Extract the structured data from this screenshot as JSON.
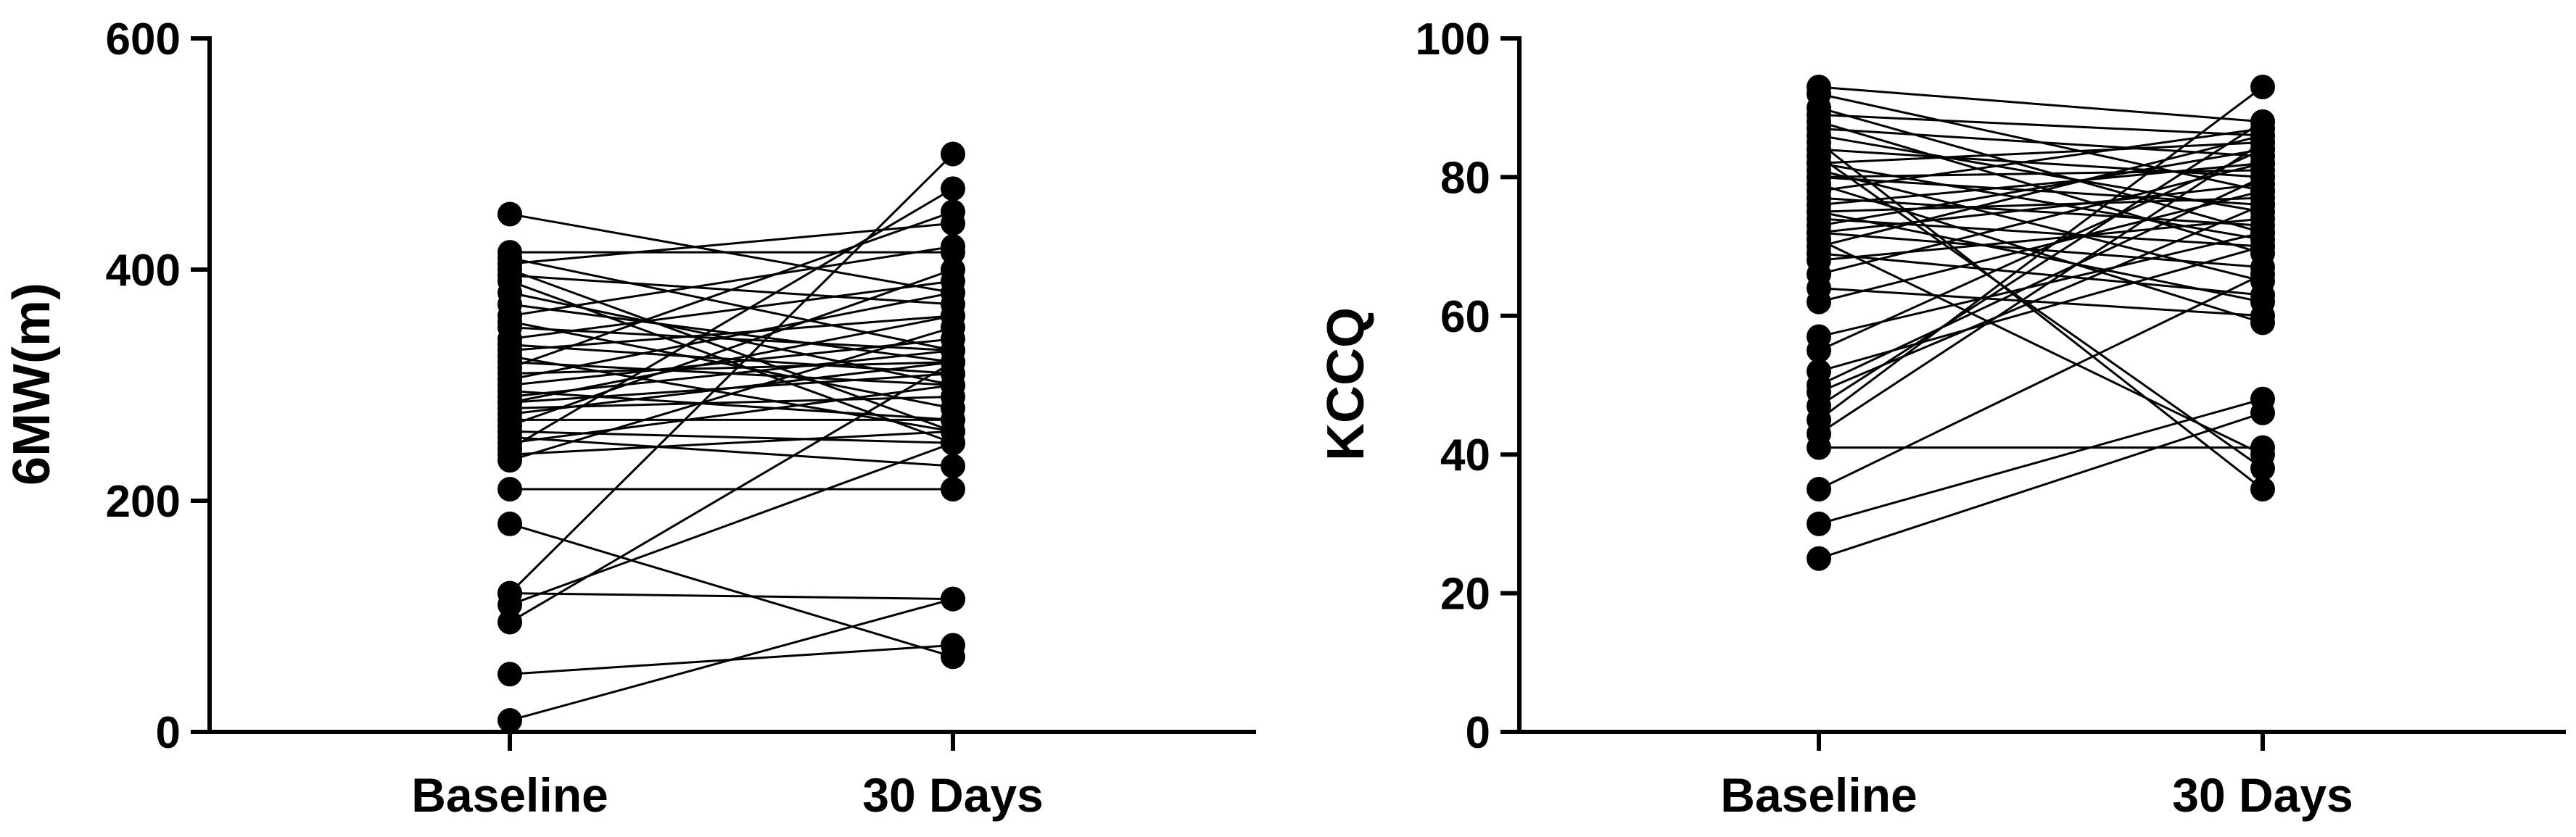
{
  "chart_data": [
    {
      "type": "line",
      "ylabel": "6MW(m)",
      "xlabel": "",
      "categories": [
        "Baseline",
        "30 Days"
      ],
      "ylim": [
        0,
        600
      ],
      "yticks": [
        0,
        200,
        400,
        600
      ],
      "grid": false,
      "legend": "none",
      "color": "#000000",
      "pairs": [
        [
          10,
          115
        ],
        [
          50,
          75
        ],
        [
          95,
          320
        ],
        [
          110,
          250
        ],
        [
          120,
          500
        ],
        [
          120,
          115
        ],
        [
          180,
          65
        ],
        [
          210,
          210
        ],
        [
          235,
          350
        ],
        [
          240,
          260
        ],
        [
          245,
          470
        ],
        [
          250,
          300
        ],
        [
          255,
          230
        ],
        [
          260,
          250
        ],
        [
          265,
          400
        ],
        [
          270,
          270
        ],
        [
          275,
          320
        ],
        [
          280,
          290
        ],
        [
          285,
          310
        ],
        [
          285,
          360
        ],
        [
          290,
          330
        ],
        [
          295,
          270
        ],
        [
          300,
          340
        ],
        [
          305,
          380
        ],
        [
          310,
          320
        ],
        [
          315,
          450
        ],
        [
          320,
          300
        ],
        [
          325,
          260
        ],
        [
          330,
          360
        ],
        [
          335,
          310
        ],
        [
          340,
          390
        ],
        [
          350,
          330
        ],
        [
          355,
          280
        ],
        [
          360,
          420
        ],
        [
          370,
          320
        ],
        [
          380,
          300
        ],
        [
          390,
          250
        ],
        [
          395,
          370
        ],
        [
          400,
          260
        ],
        [
          405,
          440
        ],
        [
          410,
          330
        ],
        [
          415,
          415
        ],
        [
          448,
          380
        ]
      ]
    },
    {
      "type": "line",
      "ylabel": "KCCQ",
      "xlabel": "",
      "categories": [
        "Baseline",
        "30 Days"
      ],
      "ylim": [
        0,
        100
      ],
      "yticks": [
        0,
        20,
        40,
        60,
        80,
        100
      ],
      "grid": false,
      "legend": "none",
      "color": "#000000",
      "pairs": [
        [
          25,
          46
        ],
        [
          30,
          48
        ],
        [
          35,
          66
        ],
        [
          41,
          41
        ],
        [
          43,
          85
        ],
        [
          45,
          93
        ],
        [
          47,
          88
        ],
        [
          49,
          76
        ],
        [
          50,
          80
        ],
        [
          52,
          70
        ],
        [
          55,
          84
        ],
        [
          57,
          72
        ],
        [
          62,
          78
        ],
        [
          64,
          60
        ],
        [
          66,
          82
        ],
        [
          68,
          74
        ],
        [
          69,
          63
        ],
        [
          70,
          86
        ],
        [
          71,
          40
        ],
        [
          72,
          79
        ],
        [
          72,
          67
        ],
        [
          73,
          84
        ],
        [
          74,
          70
        ],
        [
          75,
          77
        ],
        [
          75,
          62
        ],
        [
          76,
          82
        ],
        [
          77,
          73
        ],
        [
          78,
          87
        ],
        [
          79,
          59
        ],
        [
          80,
          76
        ],
        [
          80,
          81
        ],
        [
          81,
          65
        ],
        [
          82,
          85
        ],
        [
          82,
          71
        ],
        [
          83,
          38
        ],
        [
          84,
          80
        ],
        [
          85,
          35
        ],
        [
          86,
          75
        ],
        [
          87,
          83
        ],
        [
          88,
          69
        ],
        [
          89,
          86
        ],
        [
          90,
          72
        ],
        [
          92,
          78
        ],
        [
          93,
          88
        ]
      ]
    }
  ]
}
